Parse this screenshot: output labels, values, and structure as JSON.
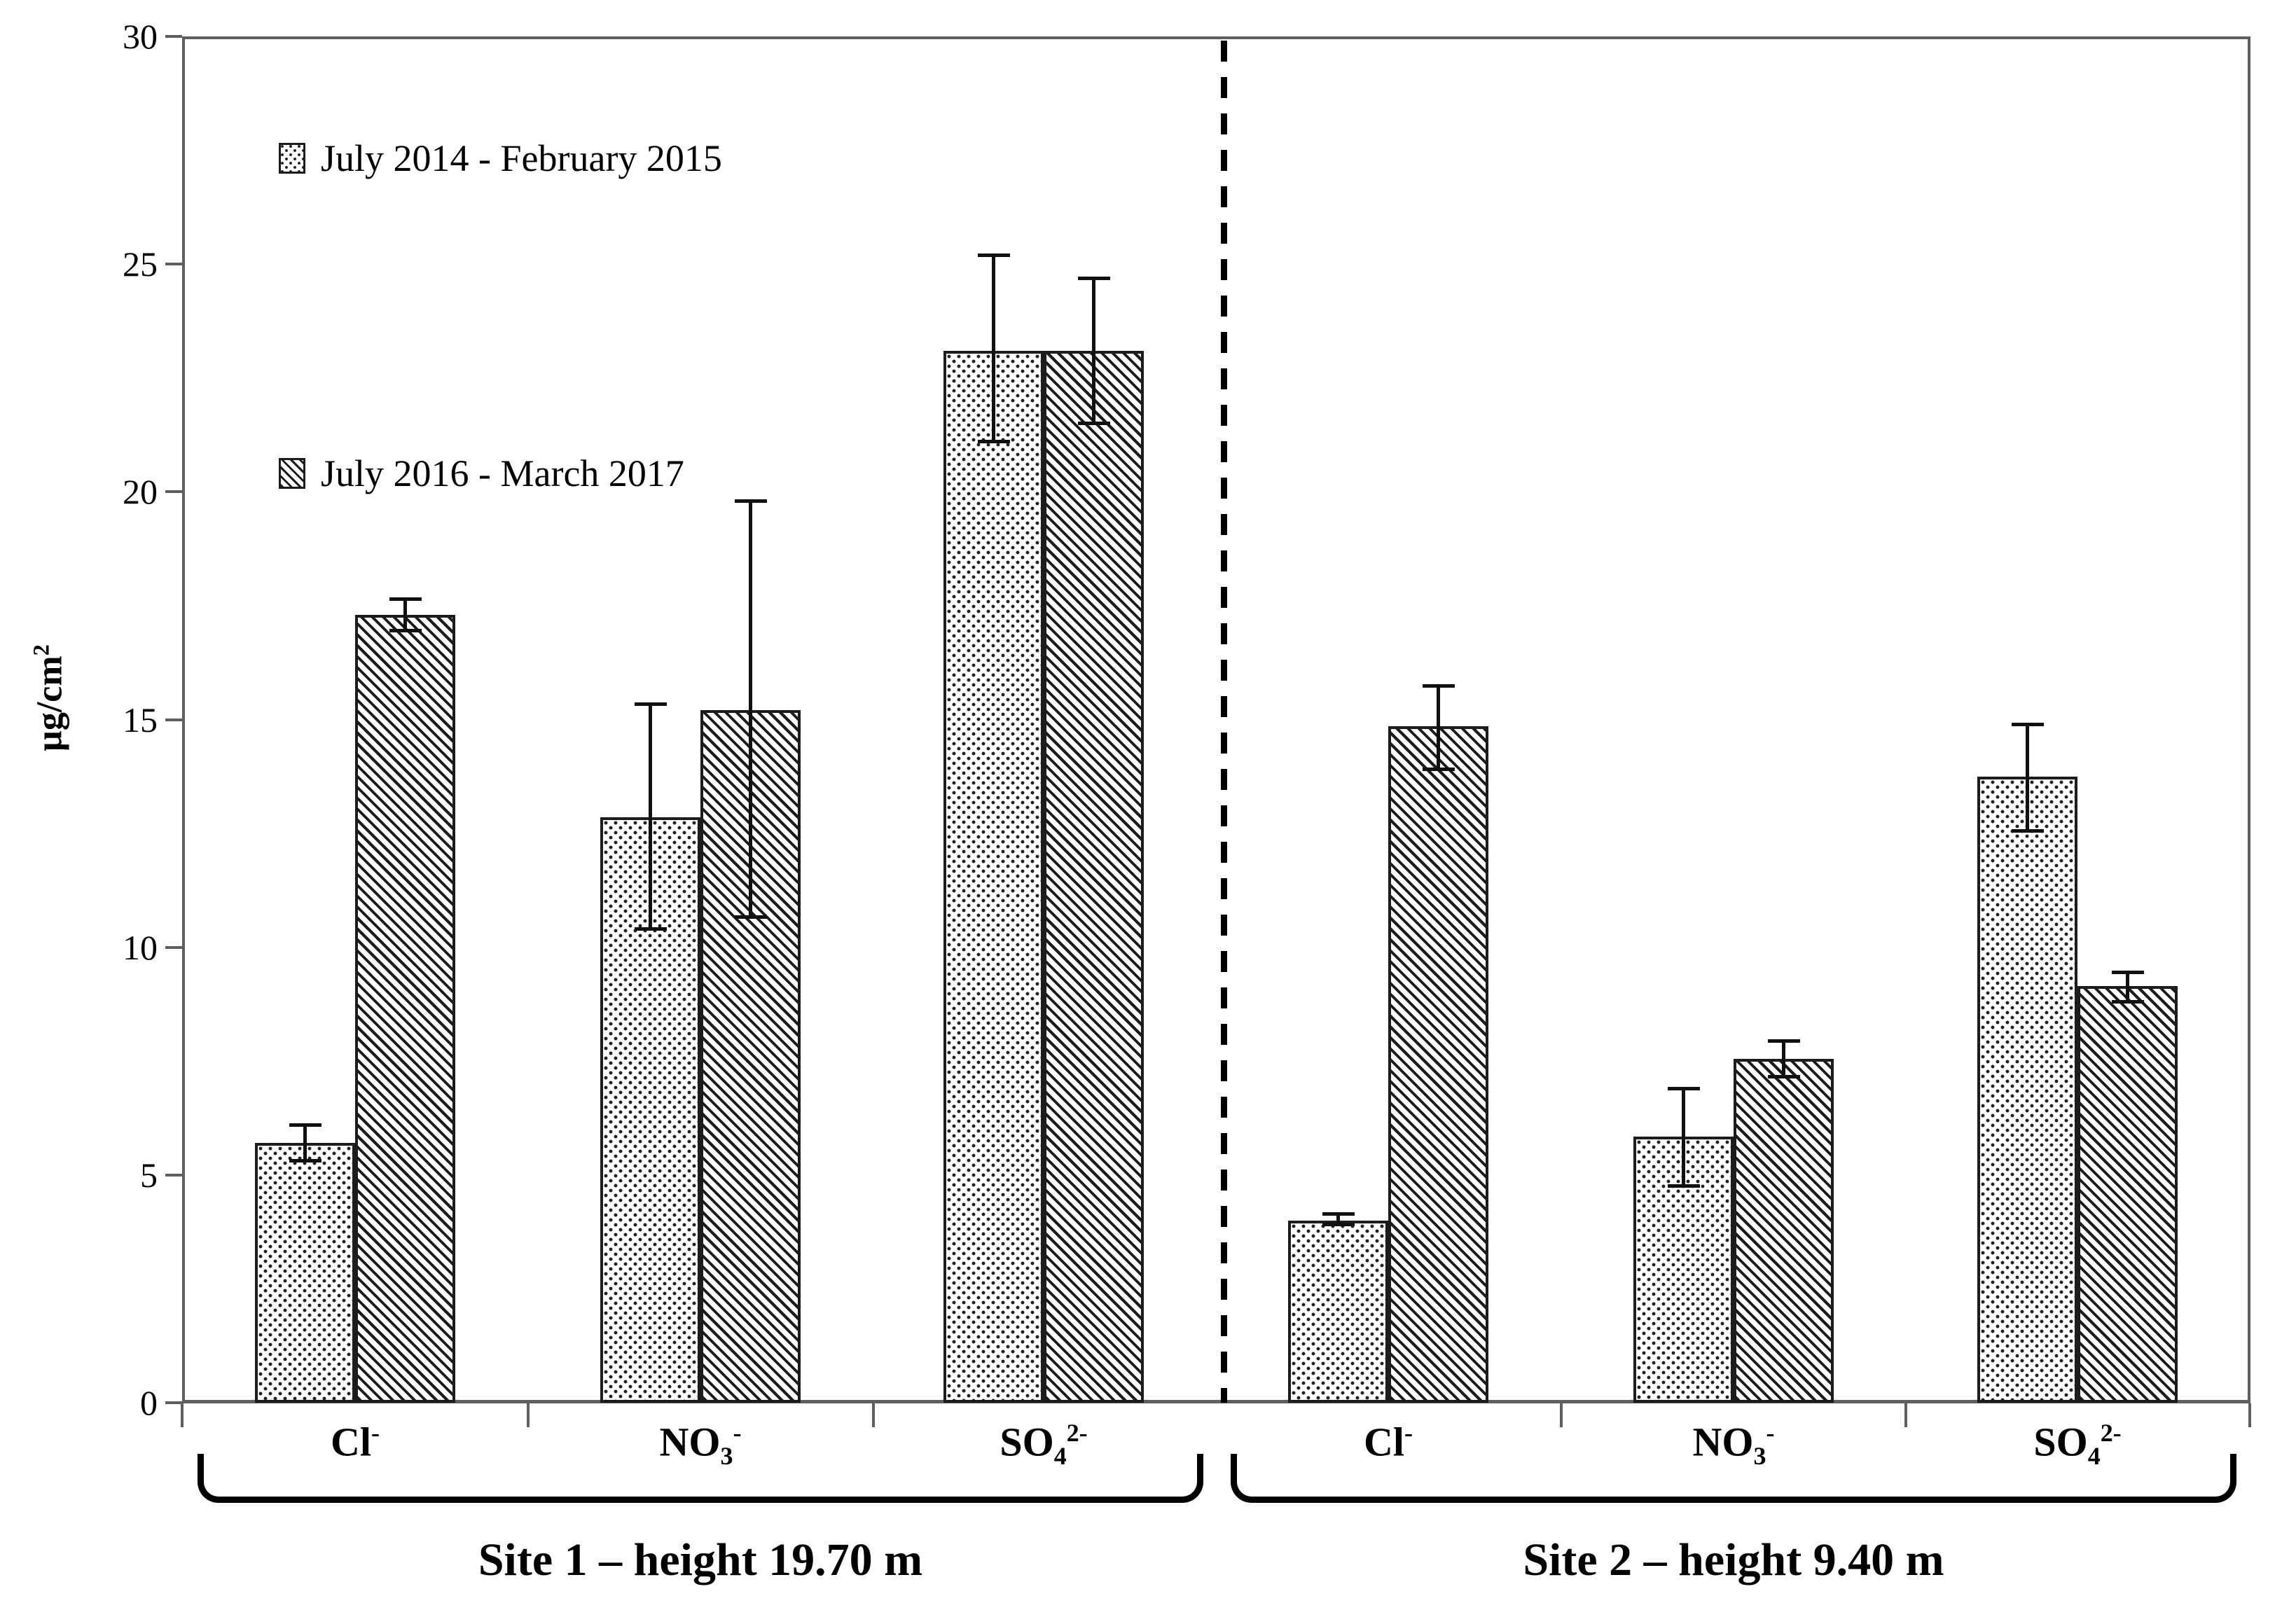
{
  "chart_data": {
    "type": "bar",
    "title": "",
    "ylabel": "µg/cm²",
    "ylabel_parts": {
      "text": "µg/cm",
      "sup": "2"
    },
    "ylim": [
      0,
      30
    ],
    "yticks": [
      0,
      5,
      10,
      15,
      20,
      25,
      30
    ],
    "grid": false,
    "legend_position": "top-left-inside",
    "error_bars": true,
    "series": [
      {
        "name": "July 2014 - February 2015",
        "pattern": "dots"
      },
      {
        "name": "July 2016 - March 2017",
        "pattern": "diagonal-hatch"
      }
    ],
    "sites": [
      {
        "label": "Site 1 – height 19.70 m"
      },
      {
        "label": "Site 2 – height 9.40 m"
      }
    ],
    "groups": [
      {
        "site": 0,
        "ion": "Cl-",
        "ion_parts": {
          "main": "Cl",
          "sub": "",
          "sup": "-"
        },
        "bars": [
          {
            "series": 0,
            "value": 5.7,
            "err_up": 0.4,
            "err_dn": 0.4
          },
          {
            "series": 1,
            "value": 17.3,
            "err_up": 0.35,
            "err_dn": 0.35
          }
        ]
      },
      {
        "site": 0,
        "ion": "NO3-",
        "ion_parts": {
          "main": "NO",
          "sub": "3",
          "sup": "-"
        },
        "bars": [
          {
            "series": 0,
            "value": 12.85,
            "err_up": 2.5,
            "err_dn": 2.45
          },
          {
            "series": 1,
            "value": 15.2,
            "err_up": 4.6,
            "err_dn": 4.55
          }
        ]
      },
      {
        "site": 0,
        "ion": "SO42-",
        "ion_parts": {
          "main": "SO",
          "sub": "4",
          "sup": "2-"
        },
        "bars": [
          {
            "series": 0,
            "value": 23.1,
            "err_up": 2.1,
            "err_dn": 2.0
          },
          {
            "series": 1,
            "value": 23.1,
            "err_up": 1.6,
            "err_dn": 1.6
          }
        ]
      },
      {
        "site": 1,
        "ion": "Cl-",
        "ion_parts": {
          "main": "Cl",
          "sub": "",
          "sup": "-"
        },
        "bars": [
          {
            "series": 0,
            "value": 4.0,
            "err_up": 0.15,
            "err_dn": 0.1
          },
          {
            "series": 1,
            "value": 14.85,
            "err_up": 0.9,
            "err_dn": 0.95
          }
        ]
      },
      {
        "site": 1,
        "ion": "NO3-",
        "ion_parts": {
          "main": "NO",
          "sub": "3",
          "sup": "-"
        },
        "bars": [
          {
            "series": 0,
            "value": 5.85,
            "err_up": 1.05,
            "err_dn": 1.1
          },
          {
            "series": 1,
            "value": 7.55,
            "err_up": 0.4,
            "err_dn": 0.4
          }
        ]
      },
      {
        "site": 1,
        "ion": "SO42-",
        "ion_parts": {
          "main": "SO",
          "sub": "4",
          "sup": "2-"
        },
        "bars": [
          {
            "series": 0,
            "value": 13.75,
            "err_up": 1.15,
            "err_dn": 1.2
          },
          {
            "series": 1,
            "value": 9.15,
            "err_up": 0.3,
            "err_dn": 0.35
          }
        ]
      }
    ]
  }
}
